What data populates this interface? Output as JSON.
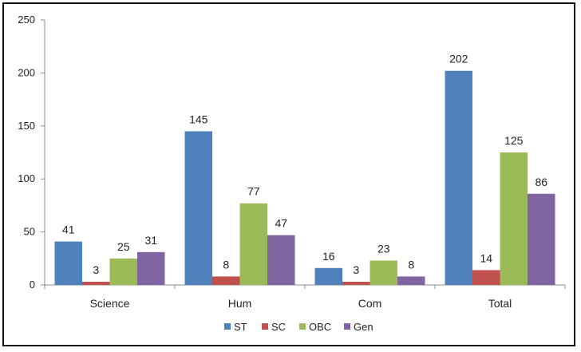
{
  "chart_data": {
    "type": "bar",
    "categories": [
      "Science",
      "Hum",
      "Com",
      "Total"
    ],
    "series": [
      {
        "name": "ST",
        "color": "#4f81bd",
        "values": [
          41,
          145,
          16,
          202
        ]
      },
      {
        "name": "SC",
        "color": "#c0504d",
        "values": [
          3,
          8,
          3,
          14
        ]
      },
      {
        "name": "OBC",
        "color": "#9bbb59",
        "values": [
          25,
          77,
          23,
          125
        ]
      },
      {
        "name": "Gen",
        "color": "#8064a2",
        "values": [
          31,
          47,
          8,
          86
        ]
      }
    ],
    "yticks": [
      "0",
      "50",
      "100",
      "150",
      "200",
      "250"
    ],
    "ylim": [
      0,
      250
    ],
    "grid": false,
    "legend_position": "bottom",
    "data_labels": true
  }
}
